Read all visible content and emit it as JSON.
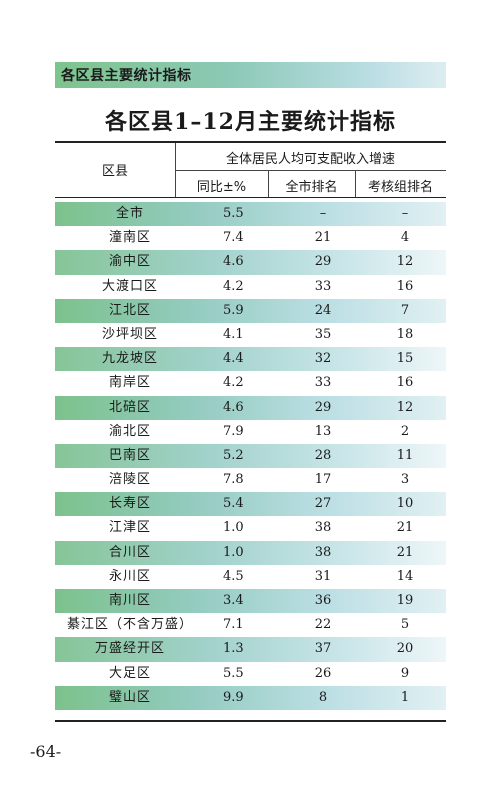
{
  "banner": {
    "label": "各区县主要统计指标"
  },
  "title": "各区县1–12月主要统计指标",
  "header": {
    "district": "区县",
    "group": "全体居民人均可支配收入增速",
    "yoy": "同比±%",
    "city_rank": "全市排名",
    "group_rank": "考核组排名"
  },
  "rows": [
    {
      "name": "全市",
      "yoy": "5.5",
      "city_rank": "–",
      "group_rank": "–"
    },
    {
      "name": "潼南区",
      "yoy": "7.4",
      "city_rank": "21",
      "group_rank": "4"
    },
    {
      "name": "渝中区",
      "yoy": "4.6",
      "city_rank": "29",
      "group_rank": "12"
    },
    {
      "name": "大渡口区",
      "yoy": "4.2",
      "city_rank": "33",
      "group_rank": "16"
    },
    {
      "name": "江北区",
      "yoy": "5.9",
      "city_rank": "24",
      "group_rank": "7"
    },
    {
      "name": "沙坪坝区",
      "yoy": "4.1",
      "city_rank": "35",
      "group_rank": "18"
    },
    {
      "name": "九龙坡区",
      "yoy": "4.4",
      "city_rank": "32",
      "group_rank": "15"
    },
    {
      "name": "南岸区",
      "yoy": "4.2",
      "city_rank": "33",
      "group_rank": "16"
    },
    {
      "name": "北碚区",
      "yoy": "4.6",
      "city_rank": "29",
      "group_rank": "12"
    },
    {
      "name": "渝北区",
      "yoy": "7.9",
      "city_rank": "13",
      "group_rank": "2"
    },
    {
      "name": "巴南区",
      "yoy": "5.2",
      "city_rank": "28",
      "group_rank": "11"
    },
    {
      "name": "涪陵区",
      "yoy": "7.8",
      "city_rank": "17",
      "group_rank": "3"
    },
    {
      "name": "长寿区",
      "yoy": "5.4",
      "city_rank": "27",
      "group_rank": "10"
    },
    {
      "name": "江津区",
      "yoy": "1.0",
      "city_rank": "38",
      "group_rank": "21"
    },
    {
      "name": "合川区",
      "yoy": "1.0",
      "city_rank": "38",
      "group_rank": "21"
    },
    {
      "name": "永川区",
      "yoy": "4.5",
      "city_rank": "31",
      "group_rank": "14"
    },
    {
      "name": "南川区",
      "yoy": "3.4",
      "city_rank": "36",
      "group_rank": "19"
    },
    {
      "name": "綦江区（不含万盛）",
      "yoy": "7.1",
      "city_rank": "22",
      "group_rank": "5"
    },
    {
      "name": "万盛经开区",
      "yoy": "1.3",
      "city_rank": "37",
      "group_rank": "20"
    },
    {
      "name": "大足区",
      "yoy": "5.5",
      "city_rank": "26",
      "group_rank": "9"
    },
    {
      "name": "璧山区",
      "yoy": "9.9",
      "city_rank": "8",
      "group_rank": "1"
    }
  ],
  "page_number": "-64-"
}
